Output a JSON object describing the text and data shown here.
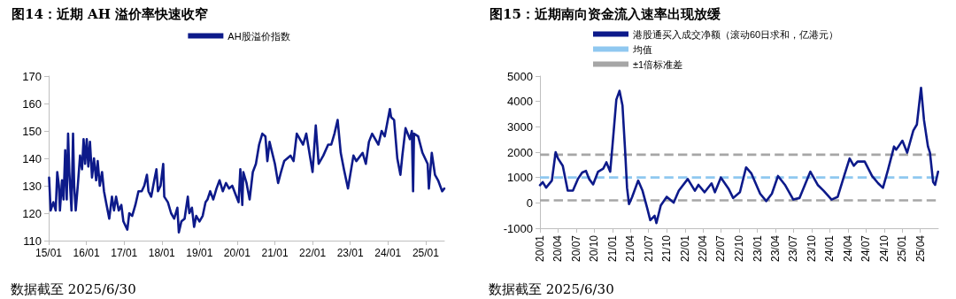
{
  "chart_data": [
    {
      "type": "line",
      "title": "图14：近期 AH 溢价率快速收窄",
      "series": [
        {
          "name": "AH股溢价指数",
          "color": "#0d1a8a",
          "x": [
            "2015-01-05",
            "2015-01-20",
            "2015-02-15",
            "2015-03-10",
            "2015-03-25",
            "2015-04-10",
            "2015-04-20",
            "2015-05-10",
            "2015-05-25",
            "2015-06-10",
            "2015-06-25",
            "2015-07-08",
            "2015-07-20",
            "2015-08-10",
            "2015-08-25",
            "2015-09-05",
            "2015-09-20",
            "2015-10-10",
            "2015-11-01",
            "2015-11-20",
            "2015-12-05",
            "2015-12-20",
            "2016-01-05",
            "2016-01-20",
            "2016-02-05",
            "2016-02-25",
            "2016-03-15",
            "2016-04-05",
            "2016-04-20",
            "2016-05-10",
            "2016-06-01",
            "2016-06-20",
            "2016-07-15",
            "2016-08-10",
            "2016-09-05",
            "2016-09-25",
            "2016-10-15",
            "2016-11-10",
            "2016-12-05",
            "2016-12-25",
            "2017-02-01",
            "2017-02-20",
            "2017-03-20",
            "2017-04-20",
            "2017-05-20",
            "2017-06-20",
            "2017-07-15",
            "2017-08-10",
            "2017-08-25",
            "2017-09-20",
            "2017-10-20",
            "2017-11-10",
            "2017-11-25",
            "2017-12-20",
            "2018-01-15",
            "2018-01-25",
            "2018-03-01",
            "2018-04-01",
            "2018-05-01",
            "2018-06-01",
            "2018-06-15",
            "2018-07-10",
            "2018-08-10",
            "2018-09-10",
            "2018-09-25",
            "2018-10-20",
            "2018-11-10",
            "2018-12-01",
            "2019-01-01",
            "2019-02-01",
            "2019-03-01",
            "2019-03-20",
            "2019-04-15",
            "2019-05-15",
            "2019-06-15",
            "2019-07-15",
            "2019-08-15",
            "2019-09-15",
            "2019-10-15",
            "2019-11-15",
            "2019-12-15",
            "2020-01-15",
            "2020-02-01",
            "2020-02-20",
            "2020-03-01",
            "2020-04-01",
            "2020-05-01",
            "2020-06-01",
            "2020-07-01",
            "2020-08-01",
            "2020-09-01",
            "2020-10-01",
            "2020-10-20",
            "2020-11-10",
            "2021-01-01",
            "2021-02-01",
            "2021-03-01",
            "2021-04-01",
            "2021-06-01",
            "2021-07-01",
            "2021-08-01",
            "2021-10-01",
            "2021-11-01",
            "2022-01-01",
            "2022-02-01",
            "2022-03-01",
            "2022-04-15",
            "2022-06-01",
            "2022-07-01",
            "2022-08-01",
            "2022-09-01",
            "2022-10-01",
            "2022-11-01",
            "2022-12-10",
            "2023-02-01",
            "2023-03-01",
            "2023-05-01",
            "2023-06-01",
            "2023-07-01",
            "2023-08-01",
            "2023-10-01",
            "2023-11-01",
            "2023-12-01",
            "2024-01-20",
            "2024-02-01",
            "2024-03-01",
            "2024-04-01",
            "2024-05-01",
            "2024-05-20",
            "2024-06-20",
            "2024-08-01",
            "2024-08-20",
            "2024-09-01",
            "2024-09-10",
            "2024-10-20",
            "2024-12-01",
            "2025-01-20",
            "2025-02-01",
            "2025-03-01",
            "2025-04-01",
            "2025-05-01",
            "2025-06-10",
            "2025-06-30"
          ],
          "values": [
            133,
            121,
            124,
            121,
            135,
            130,
            121,
            132,
            125,
            143,
            125,
            149,
            135,
            121,
            149,
            130,
            121,
            130,
            141,
            136,
            147,
            138,
            147,
            137,
            146,
            133,
            140,
            132,
            139,
            130,
            135,
            128,
            123,
            118,
            126,
            121,
            126,
            121,
            123,
            117,
            114,
            120,
            119,
            123,
            128,
            128,
            130,
            134,
            128,
            126,
            132,
            136,
            128,
            130,
            138,
            126,
            124,
            120,
            118,
            122,
            113,
            117,
            118,
            126,
            120,
            122,
            115,
            119,
            117,
            119,
            124,
            125,
            128,
            125,
            129,
            132,
            128,
            131,
            129,
            130,
            127,
            124,
            136,
            123,
            135,
            131,
            125,
            135,
            138,
            145,
            149,
            148,
            139,
            146,
            138,
            131,
            135,
            139,
            141,
            139,
            149,
            145,
            149,
            135,
            152,
            138,
            141,
            145,
            145,
            149,
            154,
            142,
            136,
            129,
            141,
            139,
            142,
            138,
            146,
            149,
            145,
            150,
            148,
            158,
            155,
            154,
            140,
            134,
            141,
            151,
            147,
            150,
            128,
            149,
            148,
            142,
            138,
            129,
            142,
            134,
            132,
            128,
            129
          ],
          "line_style": "solid"
        }
      ],
      "xlim": [
        "2015-01-01",
        "2025-07-01"
      ],
      "xticks": [
        {
          "value": "2015-01-01",
          "label": "15/01"
        },
        {
          "value": "2016-01-01",
          "label": "16/01"
        },
        {
          "value": "2017-01-01",
          "label": "17/01"
        },
        {
          "value": "2018-01-01",
          "label": "18/01"
        },
        {
          "value": "2019-01-01",
          "label": "19/01"
        },
        {
          "value": "2020-01-01",
          "label": "20/01"
        },
        {
          "value": "2021-01-01",
          "label": "21/01"
        },
        {
          "value": "2022-01-01",
          "label": "22/01"
        },
        {
          "value": "2023-01-01",
          "label": "23/01"
        },
        {
          "value": "2024-01-01",
          "label": "24/01"
        },
        {
          "value": "2025-01-01",
          "label": "25/01"
        }
      ],
      "ylim": [
        110,
        170
      ],
      "yticks": [
        110,
        120,
        130,
        140,
        150,
        160,
        170
      ],
      "grid": false,
      "legend": "top",
      "marker": "none",
      "annotations": [
        "数据截至 2025/6/30"
      ]
    },
    {
      "type": "line",
      "title": "图15：近期南向资金流入速率出现放缓",
      "series": [
        {
          "name": "港股通买入成交净额（滚动60日求和，亿港元）",
          "color": "#0d1a8a",
          "line_style": "solid",
          "x": [
            "2020-01-01",
            "2020-01-15",
            "2020-02-01",
            "2020-03-01",
            "2020-03-20",
            "2020-04-01",
            "2020-04-25",
            "2020-05-20",
            "2020-06-15",
            "2020-07-10",
            "2020-08-01",
            "2020-08-20",
            "2020-09-05",
            "2020-09-25",
            "2020-10-20",
            "2020-11-15",
            "2020-12-01",
            "2020-12-20",
            "2021-01-01",
            "2021-01-20",
            "2021-02-05",
            "2021-02-20",
            "2021-03-05",
            "2021-03-15",
            "2021-03-25",
            "2021-04-10",
            "2021-05-10",
            "2021-06-01",
            "2021-06-25",
            "2021-07-10",
            "2021-08-01",
            "2021-08-10",
            "2021-09-01",
            "2021-10-01",
            "2021-11-05",
            "2021-12-01",
            "2022-01-15",
            "2022-02-20",
            "2022-03-10",
            "2022-04-10",
            "2022-05-15",
            "2022-06-01",
            "2022-07-01",
            "2022-08-10",
            "2022-09-01",
            "2022-10-05",
            "2022-11-05",
            "2022-12-01",
            "2023-01-15",
            "2023-02-15",
            "2023-03-15",
            "2023-04-15",
            "2023-05-20",
            "2023-07-01",
            "2023-08-01",
            "2023-09-25",
            "2023-11-01",
            "2023-12-01",
            "2024-01-10",
            "2024-02-10",
            "2024-03-15",
            "2024-04-10",
            "2024-05-01",
            "2024-05-20",
            "2024-06-25",
            "2024-08-01",
            "2024-09-01",
            "2024-09-25",
            "2024-10-20",
            "2024-11-20",
            "2024-12-01",
            "2025-01-01",
            "2025-01-25",
            "2025-02-25",
            "2025-03-15",
            "2025-04-05",
            "2025-04-20",
            "2025-05-10",
            "2025-05-20",
            "2025-06-05",
            "2025-06-15",
            "2025-06-30"
          ],
          "values": [
            700,
            820,
            600,
            880,
            2000,
            1750,
            1460,
            480,
            480,
            940,
            1200,
            1260,
            940,
            730,
            1230,
            1350,
            1600,
            1230,
            2300,
            4070,
            4420,
            3840,
            2100,
            590,
            -50,
            240,
            880,
            480,
            -220,
            -680,
            -510,
            -800,
            -100,
            240,
            10,
            480,
            940,
            480,
            710,
            420,
            770,
            420,
            1000,
            540,
            190,
            420,
            1400,
            1170,
            360,
            70,
            360,
            1060,
            710,
            130,
            190,
            1230,
            710,
            480,
            130,
            240,
            1110,
            1750,
            1460,
            1630,
            1630,
            1060,
            770,
            590,
            1290,
            2220,
            2100,
            2450,
            1980,
            2850,
            3090,
            4540,
            3260,
            2220,
            1980,
            820,
            710,
            1230
          ]
        }
      ],
      "ref_lines": [
        {
          "axis": "y",
          "value": 1000,
          "label": "均值",
          "color": "#8fc8f0",
          "line_style": "dashed"
        },
        {
          "axis": "y",
          "value": 1900,
          "label": "±1倍标准差",
          "color": "#a6a6a6",
          "line_style": "dashed"
        },
        {
          "axis": "y",
          "value": 100,
          "color": "#a6a6a6",
          "line_style": "dashed"
        }
      ],
      "xlim": [
        "2020-01-01",
        "2025-07-01"
      ],
      "xticks": [
        {
          "value": "2020-01-01",
          "label": "20/01"
        },
        {
          "value": "2020-04-01",
          "label": "20/04"
        },
        {
          "value": "2020-07-01",
          "label": "20/07"
        },
        {
          "value": "2020-10-01",
          "label": "20/10"
        },
        {
          "value": "2021-01-01",
          "label": "21/01"
        },
        {
          "value": "2021-04-01",
          "label": "21/04"
        },
        {
          "value": "2021-07-01",
          "label": "21/07"
        },
        {
          "value": "2021-10-01",
          "label": "21/10"
        },
        {
          "value": "2022-01-01",
          "label": "22/01"
        },
        {
          "value": "2022-04-01",
          "label": "22/04"
        },
        {
          "value": "2022-07-01",
          "label": "22/07"
        },
        {
          "value": "2022-10-01",
          "label": "22/10"
        },
        {
          "value": "2023-01-01",
          "label": "23/01"
        },
        {
          "value": "2023-04-01",
          "label": "23/04"
        },
        {
          "value": "2023-07-01",
          "label": "23/07"
        },
        {
          "value": "2023-10-01",
          "label": "23/10"
        },
        {
          "value": "2024-01-01",
          "label": "24/01"
        },
        {
          "value": "2024-04-01",
          "label": "24/04"
        },
        {
          "value": "2024-07-01",
          "label": "24/07"
        },
        {
          "value": "2024-10-01",
          "label": "24/10"
        },
        {
          "value": "2025-01-01",
          "label": "25/01"
        },
        {
          "value": "2025-04-01",
          "label": "25/04"
        }
      ],
      "ylim": [
        -1000,
        5000
      ],
      "yticks": [
        -1000,
        0,
        1000,
        2000,
        3000,
        4000,
        5000
      ],
      "grid": false,
      "legend": "top left",
      "marker": "none",
      "annotations": [
        "数据截至 2025/6/30"
      ]
    }
  ]
}
